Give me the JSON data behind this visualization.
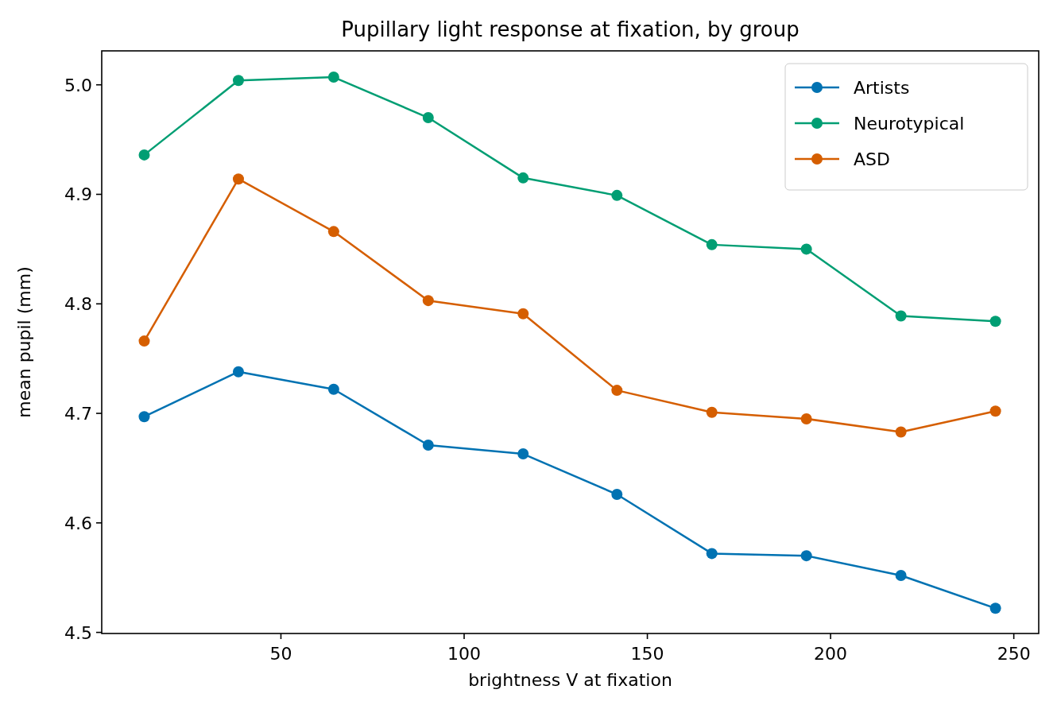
{
  "chart_data": {
    "type": "line",
    "title": "Pupillary light response at fixation, by group",
    "xlabel": "brightness V at fixation",
    "ylabel": "mean pupil (mm)",
    "x": [
      12.7,
      38.4,
      64.4,
      90.2,
      116.1,
      141.7,
      167.6,
      193.4,
      219.2,
      245.0
    ],
    "series": [
      {
        "name": "Artists",
        "color": "#0072b2",
        "values": [
          4.697,
          4.738,
          4.722,
          4.671,
          4.663,
          4.626,
          4.572,
          4.57,
          4.552,
          4.522
        ]
      },
      {
        "name": "Neurotypical",
        "color": "#009e73",
        "values": [
          4.936,
          5.004,
          5.007,
          4.97,
          4.915,
          4.899,
          4.854,
          4.85,
          4.789,
          4.784
        ]
      },
      {
        "name": "ASD",
        "color": "#d55e00",
        "values": [
          4.766,
          4.914,
          4.866,
          4.803,
          4.791,
          4.721,
          4.701,
          4.695,
          4.683,
          4.702
        ]
      }
    ],
    "xlim": [
      1.1,
      256.8
    ],
    "xticks": [
      50,
      100,
      150,
      200,
      250
    ],
    "ylim": [
      4.499,
      5.031
    ],
    "yticks": [
      4.5,
      4.6,
      4.7,
      4.8,
      4.9,
      {
        "value": 5.0,
        "label": "5.0"
      }
    ],
    "marker": "circle",
    "line_style": "solid",
    "legend": "top right",
    "grid": false
  }
}
